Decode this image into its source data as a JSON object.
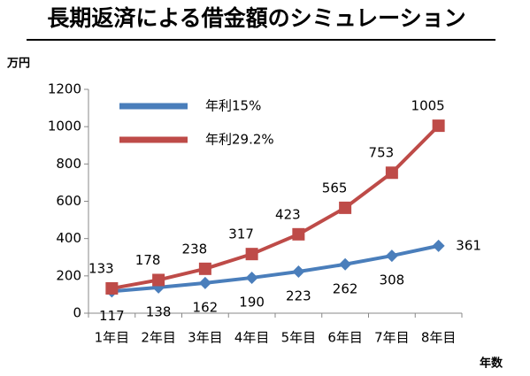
{
  "chart_data": {
    "type": "line",
    "title": "長期返済による借金額のシミュレーション",
    "y_label": "万円",
    "x_label": "年数",
    "categories": [
      "1年目",
      "2年目",
      "3年目",
      "4年目",
      "5年目",
      "6年目",
      "7年目",
      "8年目"
    ],
    "series": [
      {
        "name": "年利15%",
        "color": "#4a7ebb",
        "marker": "diamond",
        "values": [
          117,
          138,
          162,
          190,
          223,
          262,
          308,
          361
        ]
      },
      {
        "name": "年利29.2%",
        "color": "#be4b48",
        "marker": "square",
        "values": [
          133,
          178,
          238,
          317,
          423,
          565,
          753,
          1005
        ]
      }
    ],
    "ylim": [
      0,
      1200
    ],
    "yticks": [
      0,
      200,
      400,
      600,
      800,
      1000,
      1200
    ],
    "grid": false,
    "legend": "top-left"
  }
}
